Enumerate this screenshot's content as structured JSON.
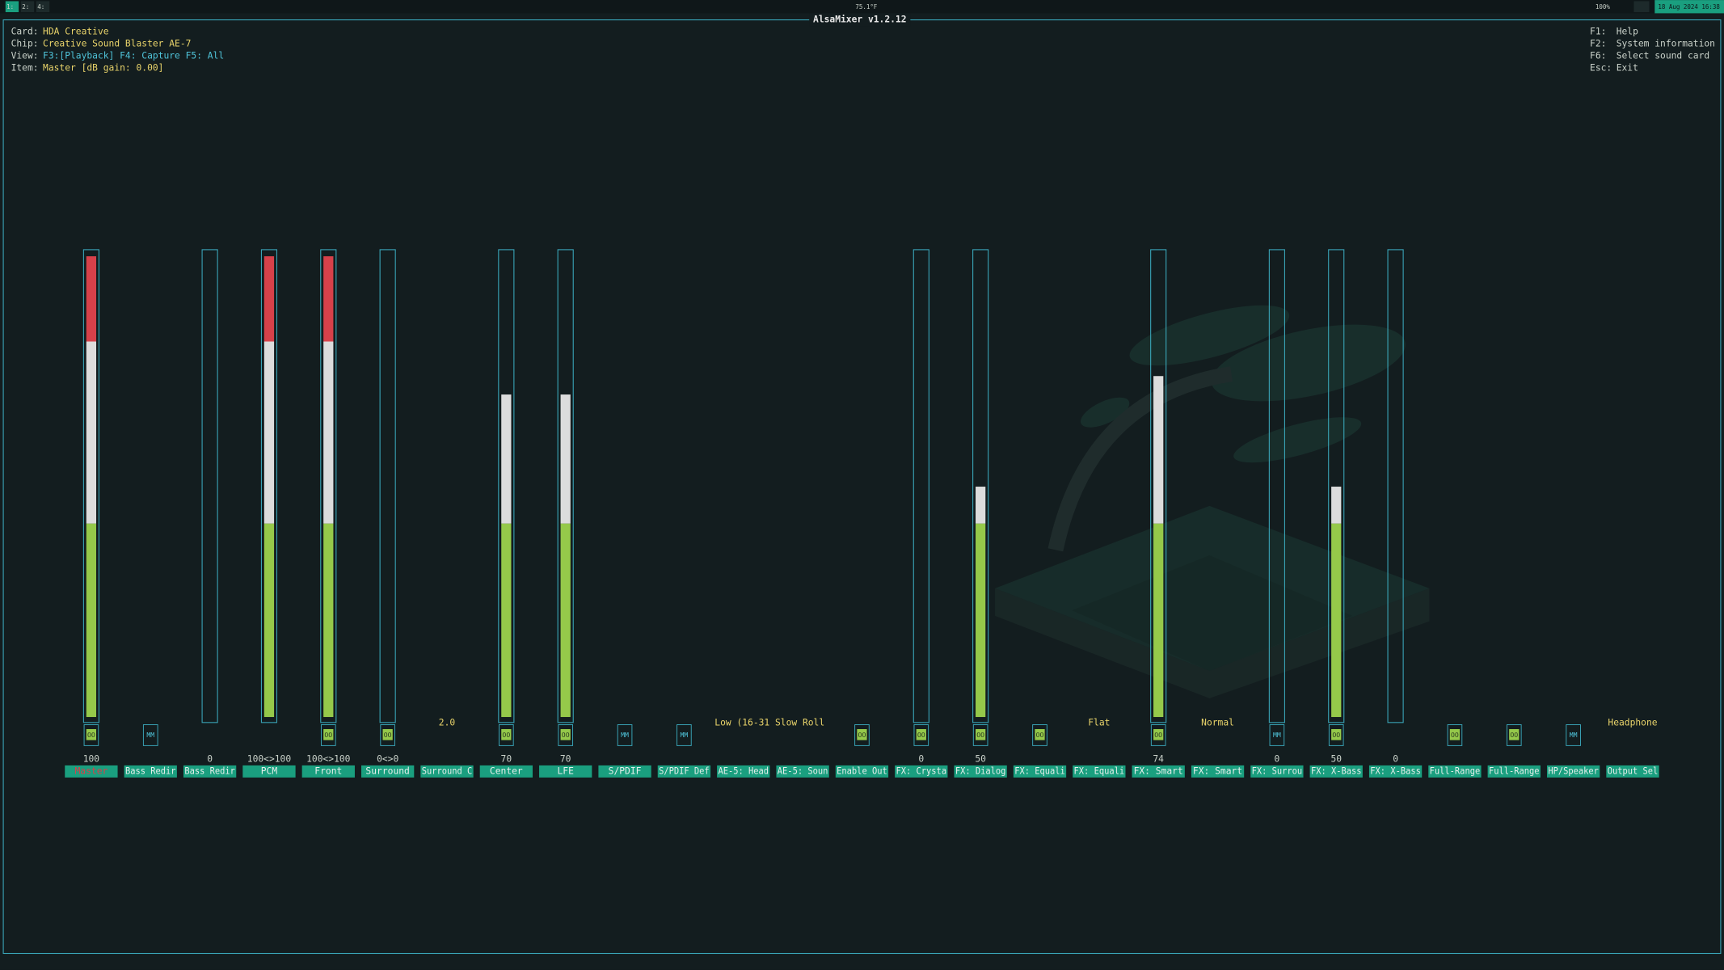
{
  "topbar": {
    "workspaces": [
      "1:",
      "2:",
      "4:"
    ],
    "weather": "75.1°F",
    "battery": "100%",
    "clock": "18 Aug 2024 16:38"
  },
  "title": "AlsaMixer v1.2.12",
  "info": [
    {
      "label": "Card:",
      "value": "HDA Creative"
    },
    {
      "label": "Chip:",
      "value": "Creative Sound Blaster AE-7"
    },
    {
      "label": "View:",
      "value": "F3:[Playback] F4: Capture  F5: All"
    },
    {
      "label": "Item:",
      "value": "Master [dB gain: 0.00]"
    }
  ],
  "help": [
    {
      "key": "F1:",
      "text": "Help"
    },
    {
      "key": "F2:",
      "text": "System information"
    },
    {
      "key": "F6:",
      "text": "Select sound card"
    },
    {
      "key": "Esc:",
      "text": "Exit"
    }
  ],
  "controls": [
    {
      "name": "Master",
      "value": "100",
      "level": 100,
      "switch": "OO"
    },
    {
      "name": "Bass Redir",
      "switch": "MM"
    },
    {
      "name": "Bass Redir",
      "value": "0",
      "level": 0
    },
    {
      "name": "PCM",
      "value": "100<>100",
      "level": 100
    },
    {
      "name": "Front",
      "value": "100<>100",
      "level": 100,
      "switch": "OO"
    },
    {
      "name": "Surround",
      "value": "0<>0",
      "level": 0,
      "switch": "OO"
    },
    {
      "name": "Surround C",
      "enum": "2.0"
    },
    {
      "name": "Center",
      "value": "70",
      "level": 70,
      "switch": "OO"
    },
    {
      "name": "LFE",
      "value": "70",
      "level": 70,
      "switch": "OO"
    },
    {
      "name": "S/PDIF",
      "switch": "MM"
    },
    {
      "name": "S/PDIF Def",
      "switch": "MM"
    },
    {
      "name": "AE-5: Head",
      "enum": "Low (16-31 Slow Roll"
    },
    {
      "name": "AE-5: Soun"
    },
    {
      "name": "Enable Out",
      "switch": "OO"
    },
    {
      "name": "FX: Crysta",
      "value": "0",
      "level": 0,
      "switch": "OO"
    },
    {
      "name": "FX: Dialog",
      "value": "50",
      "level": 50,
      "switch": "OO"
    },
    {
      "name": "FX: Equali",
      "switch": "OO"
    },
    {
      "name": "FX: Equali",
      "enum": "Flat"
    },
    {
      "name": "FX: Smart",
      "value": "74",
      "level": 74,
      "switch": "OO"
    },
    {
      "name": "FX: Smart",
      "enum": "Normal"
    },
    {
      "name": "FX: Surrou",
      "value": "0",
      "level": 0,
      "switch": "MM"
    },
    {
      "name": "FX: X-Bass",
      "value": "50",
      "level": 50,
      "switch": "OO"
    },
    {
      "name": "FX: X-Bass",
      "value": "0",
      "level": 0
    },
    {
      "name": "Full-Range",
      "switch": "OO"
    },
    {
      "name": "Full-Range",
      "switch": "OO"
    },
    {
      "name": "HP/Speaker",
      "switch": "MM"
    },
    {
      "name": "Output Sel",
      "enum": "Headphone"
    }
  ]
}
